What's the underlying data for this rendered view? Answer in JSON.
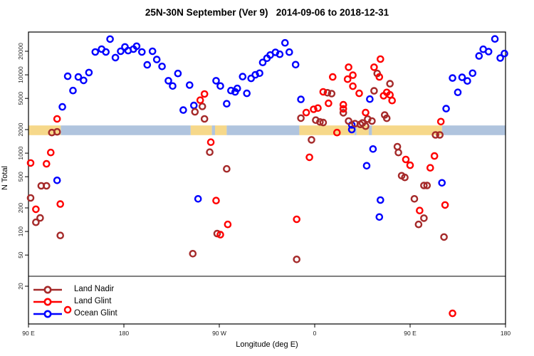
{
  "title": "25N-30N September (Ver 9)   2014-09-06 to 2018-12-31",
  "axes": {
    "x": {
      "label": "Longitude (deg E)",
      "range": [
        90,
        540
      ],
      "ticks": [
        {
          "value": 90,
          "label": "90 E"
        },
        {
          "value": 180,
          "label": "180"
        },
        {
          "value": 270,
          "label": "90 W"
        },
        {
          "value": 360,
          "label": "0"
        },
        {
          "value": 450,
          "label": "90 E"
        },
        {
          "value": 540,
          "label": "180"
        }
      ]
    },
    "y": {
      "label": "N Total",
      "scale": "log",
      "range": [
        7,
        35000
      ],
      "ticks": [
        20,
        50,
        100,
        200,
        500,
        1000,
        2000,
        5000,
        10000,
        20000
      ]
    }
  },
  "band": {
    "top_value": 2260,
    "bottom_value": 1700,
    "colors": {
      "land": "#F6D88A",
      "ocean": "#B0C4DE"
    },
    "segments": [
      {
        "from": 90,
        "to": 120.5,
        "type": "land"
      },
      {
        "from": 120.5,
        "to": 243,
        "type": "ocean"
      },
      {
        "from": 243,
        "to": 263,
        "type": "land"
      },
      {
        "from": 263,
        "to": 266,
        "type": "ocean"
      },
      {
        "from": 266,
        "to": 277,
        "type": "land"
      },
      {
        "from": 277,
        "to": 345.5,
        "type": "ocean"
      },
      {
        "from": 345.5,
        "to": 397.5,
        "type": "land"
      },
      {
        "from": 397.5,
        "to": 399.5,
        "type": "ocean"
      },
      {
        "from": 399.5,
        "to": 411,
        "type": "land"
      },
      {
        "from": 411,
        "to": 414,
        "type": "ocean"
      },
      {
        "from": 414,
        "to": 480,
        "type": "land"
      },
      {
        "from": 480,
        "to": 540,
        "type": "ocean"
      }
    ]
  },
  "legend": {
    "items": [
      {
        "label": "Land Nadir",
        "color": "#A52A2A"
      },
      {
        "label": "Land Glint",
        "color": "#FF0000"
      },
      {
        "label": "Ocean Glint",
        "color": "#0000FF"
      }
    ]
  },
  "chart_data": {
    "type": "scatter",
    "xlabel": "Longitude (deg E)",
    "ylabel": "N Total",
    "x_unit": "degrees east, unwrapped 90E to 180",
    "series": [
      {
        "name": "Land Nadir",
        "color": "#A52A2A",
        "points": [
          [
            92,
            268
          ],
          [
            97,
            131
          ],
          [
            101,
            149
          ],
          [
            102,
            383
          ],
          [
            107,
            383
          ],
          [
            112,
            1830
          ],
          [
            117,
            1870
          ],
          [
            120,
            89
          ],
          [
            245,
            52
          ],
          [
            247,
            3370
          ],
          [
            254,
            3950
          ],
          [
            256,
            2740
          ],
          [
            261,
            1030
          ],
          [
            268,
            94
          ],
          [
            277,
            630
          ],
          [
            343,
            44
          ],
          [
            347,
            2800
          ],
          [
            357,
            1480
          ],
          [
            361,
            2640
          ],
          [
            365,
            2500
          ],
          [
            368,
            2460
          ],
          [
            372,
            5900
          ],
          [
            376,
            5750
          ],
          [
            387,
            3280
          ],
          [
            392,
            2570
          ],
          [
            398,
            2380
          ],
          [
            403,
            2330
          ],
          [
            405,
            2430
          ],
          [
            408,
            2210
          ],
          [
            410,
            2720
          ],
          [
            414,
            2570
          ],
          [
            416,
            6250
          ],
          [
            419,
            10400
          ],
          [
            426,
            3070
          ],
          [
            428,
            2790
          ],
          [
            431,
            7700
          ],
          [
            438,
            1210
          ],
          [
            439,
            1020
          ],
          [
            442,
            515
          ],
          [
            445,
            490
          ],
          [
            454,
            261
          ],
          [
            458,
            123
          ],
          [
            463,
            148
          ],
          [
            463,
            387
          ],
          [
            466,
            387
          ],
          [
            474,
            1710
          ],
          [
            478,
            1710
          ],
          [
            482,
            85
          ]
        ]
      },
      {
        "name": "Land Glint",
        "color": "#FF0000",
        "points": [
          [
            92,
            750
          ],
          [
            97,
            192
          ],
          [
            107,
            730
          ],
          [
            111,
            1020
          ],
          [
            117,
            2740
          ],
          [
            120,
            224
          ],
          [
            127,
            10
          ],
          [
            252,
            4750
          ],
          [
            256,
            5700
          ],
          [
            262,
            1380
          ],
          [
            267,
            248
          ],
          [
            271,
            91
          ],
          [
            278,
            123
          ],
          [
            343,
            143
          ],
          [
            352,
            3300
          ],
          [
            355,
            885
          ],
          [
            359,
            3630
          ],
          [
            363,
            3760
          ],
          [
            368,
            6070
          ],
          [
            373,
            4330
          ],
          [
            377,
            9400
          ],
          [
            381,
            1830
          ],
          [
            387,
            4150
          ],
          [
            387,
            3680
          ],
          [
            391,
            8800
          ],
          [
            392,
            12500
          ],
          [
            396,
            9900
          ],
          [
            396,
            7150
          ],
          [
            402,
            5800
          ],
          [
            408,
            3300
          ],
          [
            416,
            12500
          ],
          [
            421,
            9400
          ],
          [
            422,
            15900
          ],
          [
            425,
            5400
          ],
          [
            428,
            5970
          ],
          [
            431,
            5550
          ],
          [
            433,
            4700
          ],
          [
            446,
            830
          ],
          [
            450,
            700
          ],
          [
            459,
            185
          ],
          [
            469,
            650
          ],
          [
            473,
            920
          ],
          [
            479,
            2530
          ],
          [
            483,
            218
          ],
          [
            490,
            9
          ]
        ]
      },
      {
        "name": "Ocean Glint",
        "color": "#0000FF",
        "points": [
          [
            117,
            450
          ],
          [
            122,
            3900
          ],
          [
            127,
            9600
          ],
          [
            132,
            6300
          ],
          [
            137,
            9400
          ],
          [
            142,
            8500
          ],
          [
            147,
            10700
          ],
          [
            153,
            19600
          ],
          [
            159,
            21300
          ],
          [
            163,
            19600
          ],
          [
            167,
            28600
          ],
          [
            172,
            16600
          ],
          [
            177,
            20000
          ],
          [
            181,
            22700
          ],
          [
            184,
            20400
          ],
          [
            189,
            21300
          ],
          [
            192,
            23200
          ],
          [
            197,
            19600
          ],
          [
            202,
            13400
          ],
          [
            207,
            20000
          ],
          [
            211,
            15700
          ],
          [
            216,
            12800
          ],
          [
            222,
            8400
          ],
          [
            226,
            7200
          ],
          [
            231,
            10400
          ],
          [
            236,
            3550
          ],
          [
            242,
            7400
          ],
          [
            246,
            4070
          ],
          [
            250,
            261
          ],
          [
            267,
            8400
          ],
          [
            271,
            7200
          ],
          [
            277,
            4280
          ],
          [
            281,
            6300
          ],
          [
            285,
            6050
          ],
          [
            287,
            6700
          ],
          [
            292,
            9500
          ],
          [
            296,
            5800
          ],
          [
            300,
            9000
          ],
          [
            304,
            10000
          ],
          [
            308,
            10500
          ],
          [
            311,
            14400
          ],
          [
            315,
            16300
          ],
          [
            318,
            17900
          ],
          [
            323,
            19400
          ],
          [
            327,
            18300
          ],
          [
            332,
            25600
          ],
          [
            336,
            19500
          ],
          [
            342,
            13500
          ],
          [
            347,
            4860
          ],
          [
            395,
            2290
          ],
          [
            395,
            2000
          ],
          [
            409,
            690
          ],
          [
            412,
            4900
          ],
          [
            415,
            1130
          ],
          [
            421,
            153
          ],
          [
            422,
            252
          ],
          [
            480,
            418
          ],
          [
            484,
            3700
          ],
          [
            490,
            9100
          ],
          [
            495,
            5980
          ],
          [
            499,
            9300
          ],
          [
            504,
            8350
          ],
          [
            509,
            10500
          ],
          [
            515,
            17400
          ],
          [
            519,
            21200
          ],
          [
            524,
            19800
          ],
          [
            530,
            28700
          ],
          [
            535,
            16400
          ],
          [
            539,
            18700
          ]
        ]
      }
    ]
  }
}
